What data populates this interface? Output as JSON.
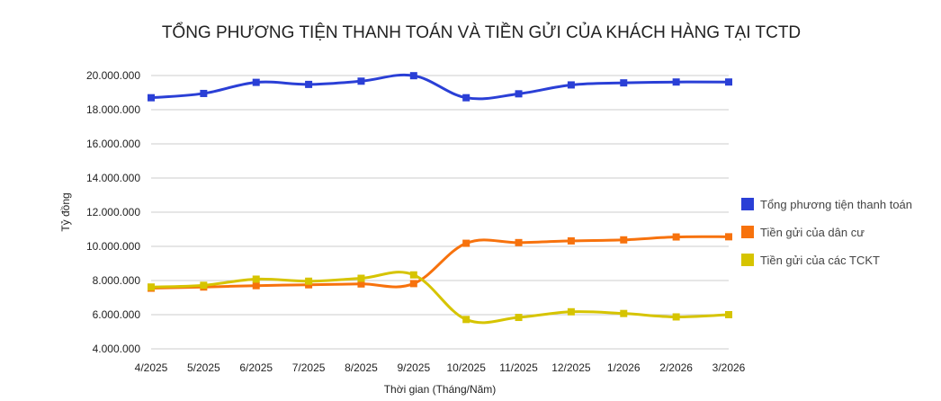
{
  "chart_data": {
    "type": "line",
    "title": "TỔNG PHƯƠNG TIỆN THANH TOÁN VÀ TIỀN GỬI CỦA KHÁCH HÀNG TẠI TCTD",
    "xlabel": "Thời gian (Tháng/Năm)",
    "ylabel": "Tỷ đồng",
    "categories": [
      "4/2025",
      "5/2025",
      "6/2025",
      "7/2025",
      "8/2025",
      "9/2025",
      "10/2025",
      "11/2025",
      "12/2025",
      "1/2026",
      "2/2026",
      "3/2026"
    ],
    "ylim": [
      4000000,
      20000000
    ],
    "yticks": [
      4000000,
      6000000,
      8000000,
      10000000,
      12000000,
      14000000,
      16000000,
      18000000,
      20000000
    ],
    "ytick_labels": [
      "4.000.000",
      "6.000.000",
      "8.000.000",
      "10.000.000",
      "12.000.000",
      "14.000.000",
      "16.000.000",
      "18.000.000",
      "20.000.000"
    ],
    "grid": true,
    "legend_position": "right",
    "series": [
      {
        "name": "Tổng phương tiện thanh toán",
        "color": "#2a3fd6",
        "values": [
          18700000,
          18950000,
          19600000,
          19480000,
          19670000,
          19990000,
          18700000,
          18930000,
          19450000,
          19570000,
          19620000,
          19620000
        ]
      },
      {
        "name": "Tiền gửi của dân cư",
        "color": "#f7720d",
        "values": [
          7550000,
          7620000,
          7700000,
          7750000,
          7800000,
          7820000,
          10180000,
          10220000,
          10320000,
          10380000,
          10550000,
          10560000
        ]
      },
      {
        "name": "Tiền gửi của các TCKT",
        "color": "#d6c400",
        "values": [
          7620000,
          7720000,
          8080000,
          7960000,
          8130000,
          8330000,
          5720000,
          5840000,
          6170000,
          6070000,
          5870000,
          6000000
        ]
      }
    ]
  }
}
